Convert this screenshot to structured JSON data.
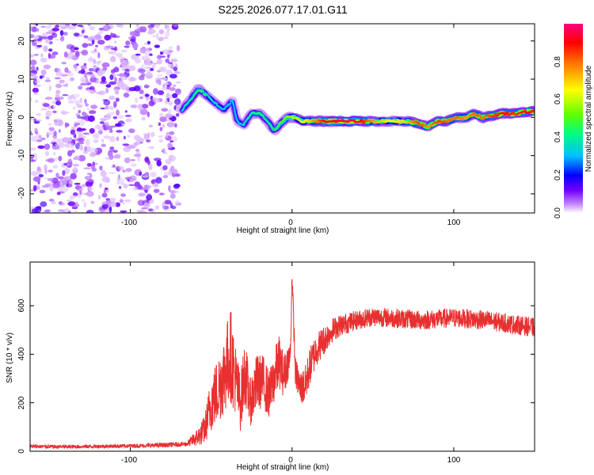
{
  "chart_data": [
    {
      "type": "heatmap",
      "title": "S225.2026.077.17.01.G11",
      "xlabel": "Height of straight line (km)",
      "ylabel": "Frequency (Hz)",
      "xlim": [
        -162,
        150
      ],
      "ylim": [
        -25,
        24.5
      ],
      "xticks": [
        -100,
        0,
        100
      ],
      "yticks": [
        -20,
        -10,
        0,
        10,
        20
      ],
      "colorbar": {
        "label": "Normalized spectral amplitude",
        "range": [
          0,
          1
        ],
        "ticks": [
          "0.0",
          "0.2",
          "0.4",
          "0.6",
          "0.8"
        ],
        "colors": [
          "#ffffff",
          "#c080ff",
          "#7000ff",
          "#0000ff",
          "#00c0ff",
          "#00ff80",
          "#60ff00",
          "#ffff00",
          "#ff8000",
          "#ff0000",
          "#ff0080"
        ]
      },
      "noise_region_x": [
        -162,
        -70
      ],
      "ridge": [
        {
          "x": -68,
          "f": 2,
          "amp": 0.35
        },
        {
          "x": -62,
          "f": 5,
          "amp": 0.4
        },
        {
          "x": -58,
          "f": 7.5,
          "amp": 0.45
        },
        {
          "x": -52,
          "f": 5.5,
          "amp": 0.35
        },
        {
          "x": -47,
          "f": 3.5,
          "amp": 0.35
        },
        {
          "x": -42,
          "f": 2,
          "amp": 0.3
        },
        {
          "x": -37,
          "f": 4.5,
          "amp": 0.3
        },
        {
          "x": -34,
          "f": -1,
          "amp": 0.3
        },
        {
          "x": -30,
          "f": -2,
          "amp": 0.35
        },
        {
          "x": -25,
          "f": 1,
          "amp": 0.4
        },
        {
          "x": -20,
          "f": 1,
          "amp": 0.45
        },
        {
          "x": -15,
          "f": -1,
          "amp": 0.4
        },
        {
          "x": -11,
          "f": -3.5,
          "amp": 0.45
        },
        {
          "x": -7,
          "f": -1.5,
          "amp": 0.5
        },
        {
          "x": -3,
          "f": 0,
          "amp": 0.55
        },
        {
          "x": 2,
          "f": 0,
          "amp": 0.6
        },
        {
          "x": 6,
          "f": -1,
          "amp": 0.65
        },
        {
          "x": 10,
          "f": -1,
          "amp": 0.7
        },
        {
          "x": 20,
          "f": -1,
          "amp": 0.9
        },
        {
          "x": 30,
          "f": -1,
          "amp": 0.95
        },
        {
          "x": 40,
          "f": -1,
          "amp": 0.95
        },
        {
          "x": 50,
          "f": -1,
          "amp": 0.75
        },
        {
          "x": 60,
          "f": -1,
          "amp": 0.65
        },
        {
          "x": 70,
          "f": -1,
          "amp": 0.7
        },
        {
          "x": 78,
          "f": -1.5,
          "amp": 0.85
        },
        {
          "x": 84,
          "f": -2.5,
          "amp": 0.75
        },
        {
          "x": 90,
          "f": -1,
          "amp": 0.85
        },
        {
          "x": 96,
          "f": -1,
          "amp": 0.8
        },
        {
          "x": 102,
          "f": 0,
          "amp": 0.8
        },
        {
          "x": 108,
          "f": 0,
          "amp": 0.75
        },
        {
          "x": 112,
          "f": 1,
          "amp": 0.8
        },
        {
          "x": 118,
          "f": 0,
          "amp": 0.8
        },
        {
          "x": 124,
          "f": 0.5,
          "amp": 0.85
        },
        {
          "x": 130,
          "f": 1,
          "amp": 0.9
        },
        {
          "x": 138,
          "f": 1,
          "amp": 0.85
        },
        {
          "x": 145,
          "f": 1.5,
          "amp": 0.9
        },
        {
          "x": 150,
          "f": 1.5,
          "amp": 0.85
        }
      ]
    },
    {
      "type": "line",
      "xlabel": "Height of straight line (km)",
      "ylabel": "SNR (10 * v/v)",
      "xlim": [
        -162,
        150
      ],
      "ylim": [
        0,
        780
      ],
      "xticks": [
        -100,
        0,
        100
      ],
      "yticks": [
        0,
        200,
        400,
        600
      ],
      "series": [
        {
          "name": "SNR",
          "color": "#e83030",
          "x": [
            -162,
            -140,
            -120,
            -100,
            -80,
            -65,
            -58,
            -54,
            -50,
            -46,
            -42,
            -38,
            -35,
            -32,
            -29,
            -26,
            -22,
            -18,
            -14,
            -10,
            -8,
            -5,
            -3,
            -1,
            0,
            2,
            5,
            8,
            11,
            15,
            20,
            25,
            30,
            40,
            50,
            60,
            70,
            80,
            90,
            100,
            110,
            120,
            130,
            140,
            150
          ],
          "values": [
            20,
            18,
            20,
            22,
            25,
            30,
            60,
            90,
            200,
            250,
            320,
            400,
            300,
            200,
            330,
            200,
            280,
            290,
            230,
            330,
            370,
            310,
            360,
            400,
            730,
            330,
            260,
            270,
            350,
            420,
            460,
            500,
            520,
            540,
            555,
            550,
            545,
            540,
            545,
            550,
            545,
            540,
            530,
            520,
            510
          ],
          "noise_amplitude": [
            8,
            8,
            8,
            8,
            10,
            10,
            40,
            60,
            120,
            140,
            170,
            200,
            150,
            120,
            140,
            100,
            120,
            110,
            100,
            110,
            110,
            90,
            80,
            60,
            40,
            60,
            70,
            80,
            80,
            70,
            60,
            50,
            45,
            40,
            40,
            40,
            40,
            40,
            40,
            40,
            40,
            40,
            40,
            40,
            40
          ]
        }
      ]
    }
  ]
}
